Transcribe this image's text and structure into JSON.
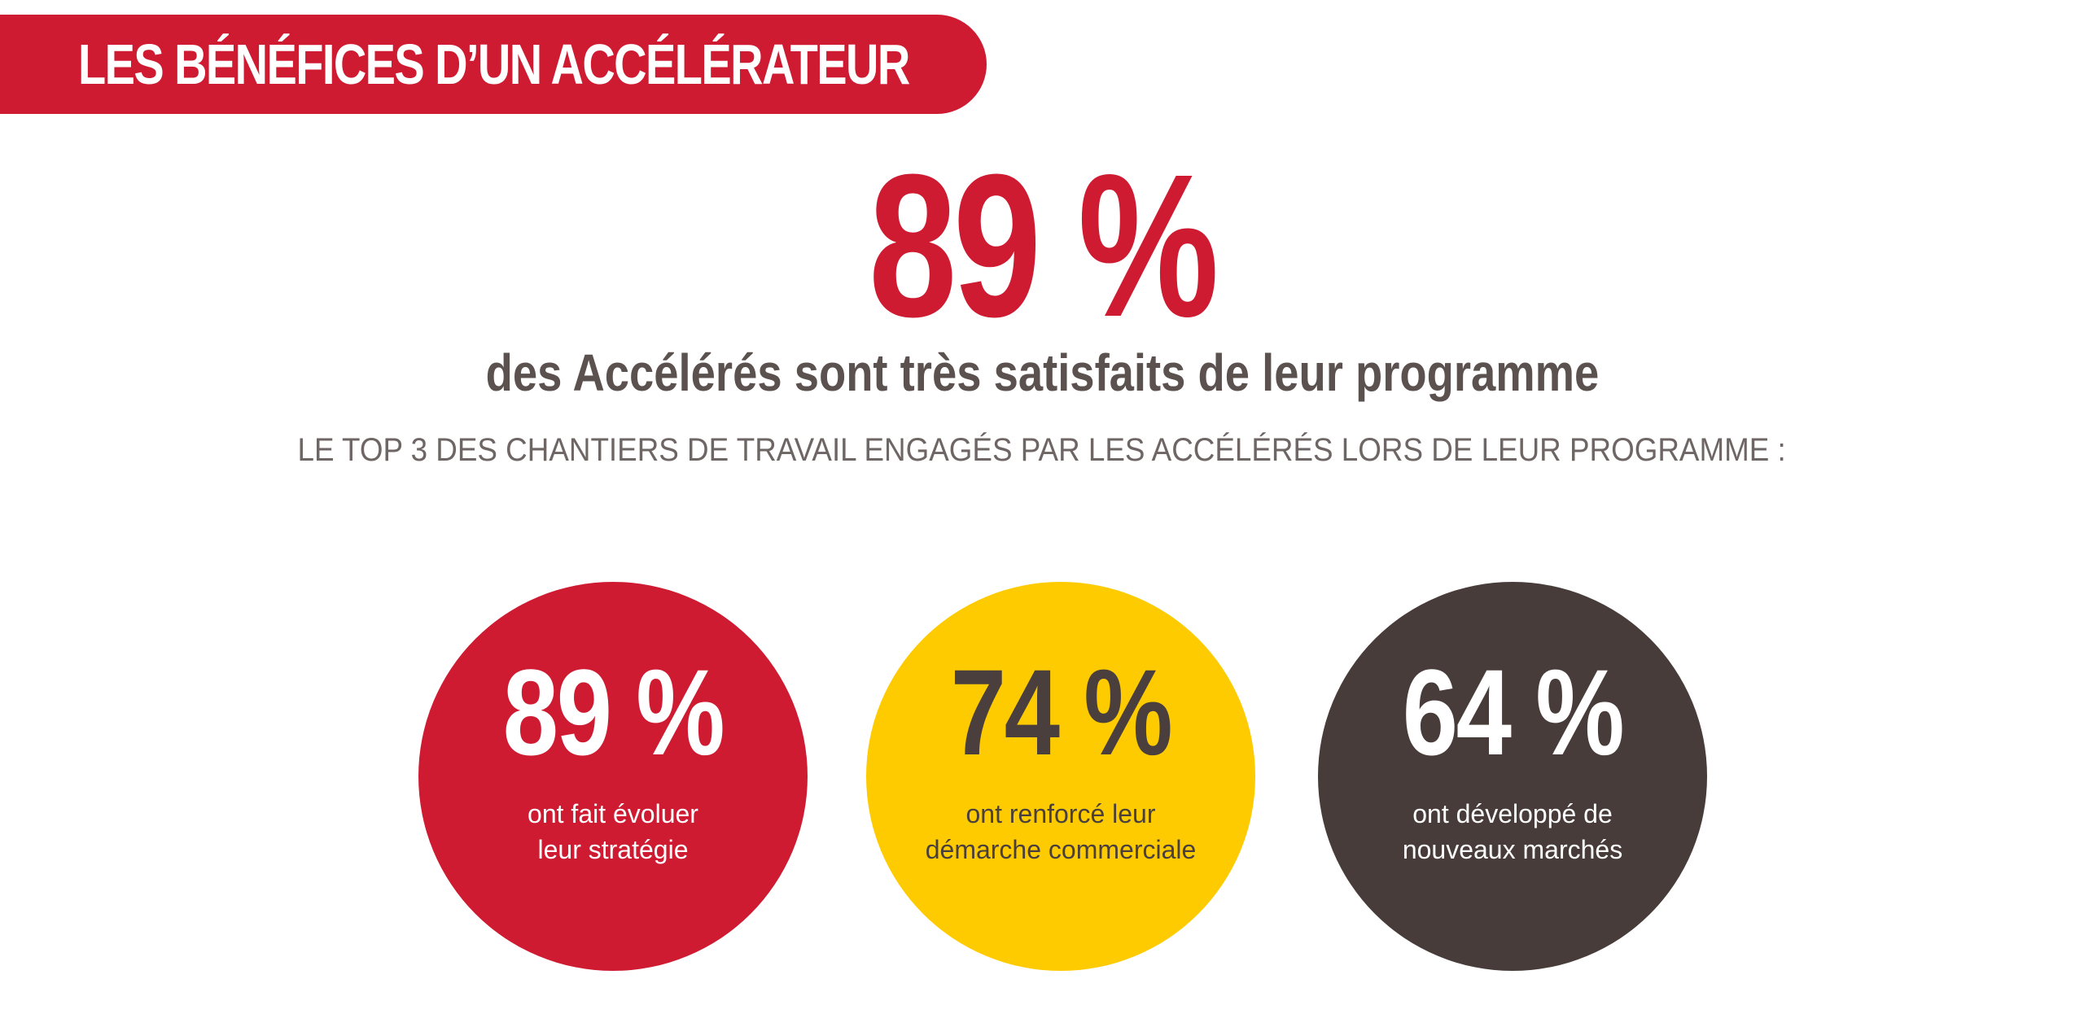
{
  "banner": {
    "title": "LES BÉNÉFICES D’UN ACCÉLÉRATEUR"
  },
  "headline": {
    "value": "89 %",
    "subtitle": "des Accélérés sont très satisfaits de leur programme",
    "caption": "LE TOP 3 DES CHANTIERS DE TRAVAIL ENGAGÉS PAR LES ACCÉLÉRÉS LORS DE LEUR PROGRAMME :"
  },
  "stats": [
    {
      "value": "89 %",
      "line1": "ont fait évoluer",
      "line2": "leur stratégie",
      "color": "#cf1b32"
    },
    {
      "value": "74 %",
      "line1": "ont renforcé leur",
      "line2": "démarche commerciale",
      "color": "#fdcb00"
    },
    {
      "value": "64 %",
      "line1": "ont développé de",
      "line2": "nouveaux marchés",
      "color": "#473c3a"
    }
  ]
}
